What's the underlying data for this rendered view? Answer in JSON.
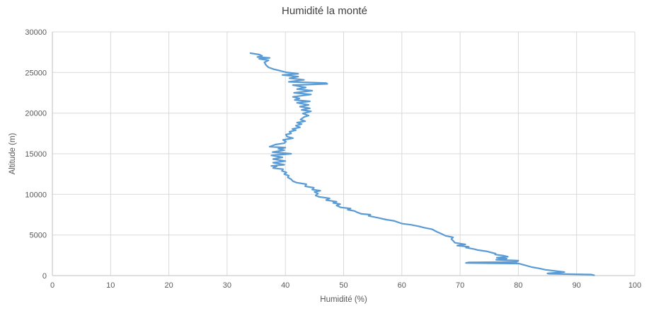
{
  "title": "Humidité la monté",
  "x_axis": {
    "label": "Humidité (%)",
    "ticks": [
      0,
      10,
      20,
      30,
      40,
      50,
      60,
      70,
      80,
      90,
      100
    ]
  },
  "y_axis": {
    "label": "Altitude (m)",
    "ticks": [
      0,
      5000,
      10000,
      15000,
      20000,
      25000,
      30000
    ]
  },
  "colors": {
    "line": "#5B9BD5",
    "grid": "#D9D9D9",
    "axis": "#BFBFBF",
    "tick_text": "#595959",
    "title_text": "#404040",
    "background": "#FFFFFF"
  },
  "chart_data": {
    "type": "line",
    "title": "Humidité la monté",
    "xlabel": "Humidité (%)",
    "ylabel": "Altitude (m)",
    "xlim": [
      0,
      100
    ],
    "ylim": [
      0,
      30000
    ],
    "grid": true,
    "legend": false,
    "series": [
      {
        "name": "Humidité la monté",
        "points_format": "[humidity_percent, altitude_m]",
        "points": [
          [
            93.0,
            40
          ],
          [
            92.5,
            130
          ],
          [
            85.2,
            230
          ],
          [
            85.0,
            280
          ],
          [
            87.9,
            436
          ],
          [
            84.6,
            723
          ],
          [
            83.5,
            900
          ],
          [
            82.3,
            1050
          ],
          [
            81.3,
            1250
          ],
          [
            80.5,
            1400
          ],
          [
            80.1,
            1480
          ],
          [
            71.0,
            1560
          ],
          [
            71.4,
            1620
          ],
          [
            79.7,
            1680
          ],
          [
            80.0,
            1850
          ],
          [
            76.2,
            1950
          ],
          [
            78.0,
            2080
          ],
          [
            76.3,
            2206
          ],
          [
            78.2,
            2330
          ],
          [
            77.5,
            2450
          ],
          [
            76.0,
            2600
          ],
          [
            76.1,
            2703
          ],
          [
            74.5,
            3000
          ],
          [
            73.0,
            3150
          ],
          [
            72.5,
            3253
          ],
          [
            71.0,
            3450
          ],
          [
            71.5,
            3550
          ],
          [
            69.5,
            3700
          ],
          [
            70.9,
            3850
          ],
          [
            69.1,
            4050
          ],
          [
            68.8,
            4300
          ],
          [
            68.5,
            4500
          ],
          [
            68.8,
            4709
          ],
          [
            67.5,
            4900
          ],
          [
            66.8,
            5145
          ],
          [
            66.0,
            5400
          ],
          [
            65.2,
            5700
          ],
          [
            63.8,
            5900
          ],
          [
            63.0,
            6050
          ],
          [
            61.6,
            6251
          ],
          [
            60.1,
            6392
          ],
          [
            59.8,
            6453
          ],
          [
            58.6,
            6750
          ],
          [
            57.3,
            6888
          ],
          [
            56.0,
            7100
          ],
          [
            54.3,
            7350
          ],
          [
            54.6,
            7499
          ],
          [
            53.1,
            7600
          ],
          [
            52.3,
            7800
          ],
          [
            51.9,
            7950
          ],
          [
            50.7,
            8109
          ],
          [
            51.2,
            8250
          ],
          [
            49.5,
            8400
          ],
          [
            48.8,
            8632
          ],
          [
            49.4,
            8800
          ],
          [
            48.2,
            8950
          ],
          [
            48.8,
            9100
          ],
          [
            47.0,
            9300
          ],
          [
            47.6,
            9504
          ],
          [
            45.8,
            9700
          ],
          [
            45.2,
            9853
          ],
          [
            45.6,
            10100
          ],
          [
            45.0,
            10300
          ],
          [
            46.0,
            10450
          ],
          [
            44.6,
            10600
          ],
          [
            44.9,
            10812
          ],
          [
            43.4,
            11000
          ],
          [
            43.6,
            11248
          ],
          [
            41.9,
            11450
          ],
          [
            41.3,
            11623
          ],
          [
            41.0,
            11859
          ],
          [
            40.4,
            12100
          ],
          [
            40.6,
            12295
          ],
          [
            39.8,
            12500
          ],
          [
            40.2,
            12700
          ],
          [
            39.4,
            12900
          ],
          [
            39.6,
            13100
          ],
          [
            37.9,
            13250
          ],
          [
            38.5,
            13430
          ],
          [
            37.6,
            13500
          ],
          [
            39.8,
            13650
          ],
          [
            37.9,
            13900
          ],
          [
            40.0,
            14100
          ],
          [
            37.9,
            14350
          ],
          [
            39.5,
            14560
          ],
          [
            37.6,
            14800
          ],
          [
            41.0,
            14998
          ],
          [
            37.8,
            15200
          ],
          [
            39.8,
            15434
          ],
          [
            38.8,
            15600
          ],
          [
            40.0,
            15750
          ],
          [
            37.3,
            15870
          ],
          [
            38.3,
            16132
          ],
          [
            39.8,
            16300
          ],
          [
            40.1,
            16500
          ],
          [
            39.6,
            16700
          ],
          [
            41.3,
            16917
          ],
          [
            40.3,
            17100
          ],
          [
            40.1,
            17353
          ],
          [
            41.0,
            17500
          ],
          [
            40.7,
            17700
          ],
          [
            41.8,
            17900
          ],
          [
            41.2,
            18045
          ],
          [
            42.5,
            18250
          ],
          [
            41.8,
            18450
          ],
          [
            42.8,
            18650
          ],
          [
            42.0,
            18830
          ],
          [
            43.4,
            19000
          ],
          [
            42.6,
            19200
          ],
          [
            43.2,
            19520
          ],
          [
            44.0,
            19700
          ],
          [
            43.0,
            19950
          ],
          [
            44.4,
            20227
          ],
          [
            42.8,
            20400
          ],
          [
            44.2,
            20600
          ],
          [
            42.5,
            20800
          ],
          [
            44.0,
            21012
          ],
          [
            42.0,
            21274
          ],
          [
            44.2,
            21450
          ],
          [
            41.6,
            21623
          ],
          [
            42.4,
            21800
          ],
          [
            41.3,
            22000
          ],
          [
            44.4,
            22300
          ],
          [
            41.5,
            22500
          ],
          [
            44.6,
            22760
          ],
          [
            42.0,
            22950
          ],
          [
            43.5,
            23150
          ],
          [
            41.3,
            23450
          ],
          [
            47.2,
            23600
          ],
          [
            47.0,
            23700
          ],
          [
            40.6,
            23850
          ],
          [
            43.2,
            24100
          ],
          [
            40.7,
            24300
          ],
          [
            42.2,
            24500
          ],
          [
            39.5,
            24700
          ],
          [
            42.2,
            24850
          ],
          [
            40.1,
            25025
          ],
          [
            39.2,
            25200
          ],
          [
            38.0,
            25400
          ],
          [
            37.1,
            25636
          ],
          [
            36.7,
            25898
          ],
          [
            36.4,
            26246
          ],
          [
            37.1,
            26500
          ],
          [
            35.5,
            26680
          ],
          [
            37.3,
            26800
          ],
          [
            35.2,
            26900
          ],
          [
            36.0,
            27050
          ],
          [
            35.5,
            27205
          ],
          [
            34.0,
            27380
          ]
        ]
      }
    ]
  }
}
